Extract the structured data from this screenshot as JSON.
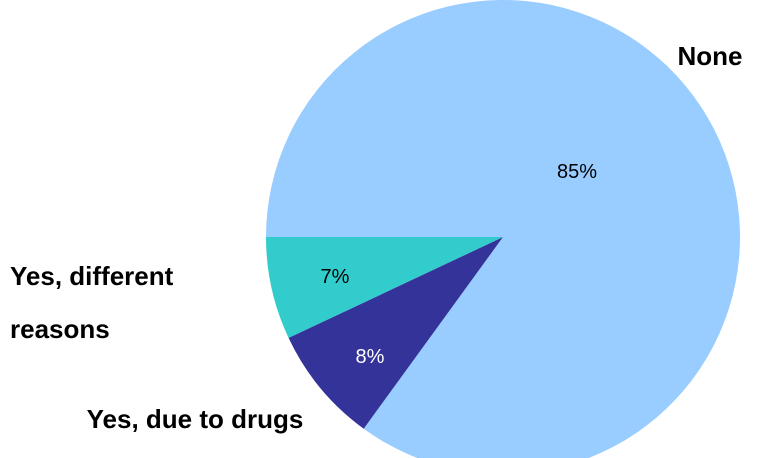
{
  "chart_data": {
    "type": "pie",
    "title": "",
    "slices": [
      {
        "label": "None",
        "value": 85,
        "value_label": "85%",
        "color": "#99ccff",
        "text_color": "#000000"
      },
      {
        "label": "Yes, due to drugs",
        "value": 8,
        "value_label": "8%",
        "color": "#333399",
        "text_color": "#ffffff"
      },
      {
        "label": "Yes, different reasons",
        "label_lines": [
          "Yes, different",
          "reasons"
        ],
        "value": 7,
        "value_label": "7%",
        "color": "#33cccc",
        "text_color": "#000000"
      }
    ]
  }
}
